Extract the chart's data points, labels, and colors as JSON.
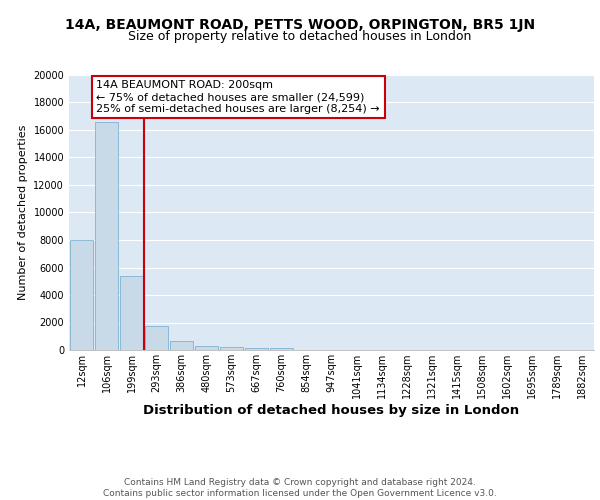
{
  "title_line1": "14A, BEAUMONT ROAD, PETTS WOOD, ORPINGTON, BR5 1JN",
  "title_line2": "Size of property relative to detached houses in London",
  "xlabel": "Distribution of detached houses by size in London",
  "ylabel": "Number of detached properties",
  "categories": [
    "12sqm",
    "106sqm",
    "199sqm",
    "293sqm",
    "386sqm",
    "480sqm",
    "573sqm",
    "667sqm",
    "760sqm",
    "854sqm",
    "947sqm",
    "1041sqm",
    "1134sqm",
    "1228sqm",
    "1321sqm",
    "1415sqm",
    "1508sqm",
    "1602sqm",
    "1695sqm",
    "1789sqm",
    "1882sqm"
  ],
  "values": [
    8000,
    16600,
    5350,
    1750,
    680,
    270,
    185,
    130,
    115,
    0,
    0,
    0,
    0,
    0,
    0,
    0,
    0,
    0,
    0,
    0,
    0
  ],
  "bar_color": "#c8d9e8",
  "bar_edge_color": "#6ea8cb",
  "highlight_bar_index": 2,
  "highlight_color": "#c8000a",
  "annotation_text": "14A BEAUMONT ROAD: 200sqm\n← 75% of detached houses are smaller (24,599)\n25% of semi-detached houses are larger (8,254) →",
  "annotation_box_color": "#ffffff",
  "annotation_box_edge_color": "#c8000a",
  "ylim": [
    0,
    20000
  ],
  "yticks": [
    0,
    2000,
    4000,
    6000,
    8000,
    10000,
    12000,
    14000,
    16000,
    18000,
    20000
  ],
  "footer_text": "Contains HM Land Registry data © Crown copyright and database right 2024.\nContains public sector information licensed under the Open Government Licence v3.0.",
  "background_color": "#ffffff",
  "plot_bg_color": "#dce8f4",
  "grid_color": "#ffffff",
  "title1_fontsize": 10,
  "title2_fontsize": 9,
  "xlabel_fontsize": 9.5,
  "ylabel_fontsize": 8,
  "tick_fontsize": 7,
  "annotation_fontsize": 8,
  "footer_fontsize": 6.5
}
